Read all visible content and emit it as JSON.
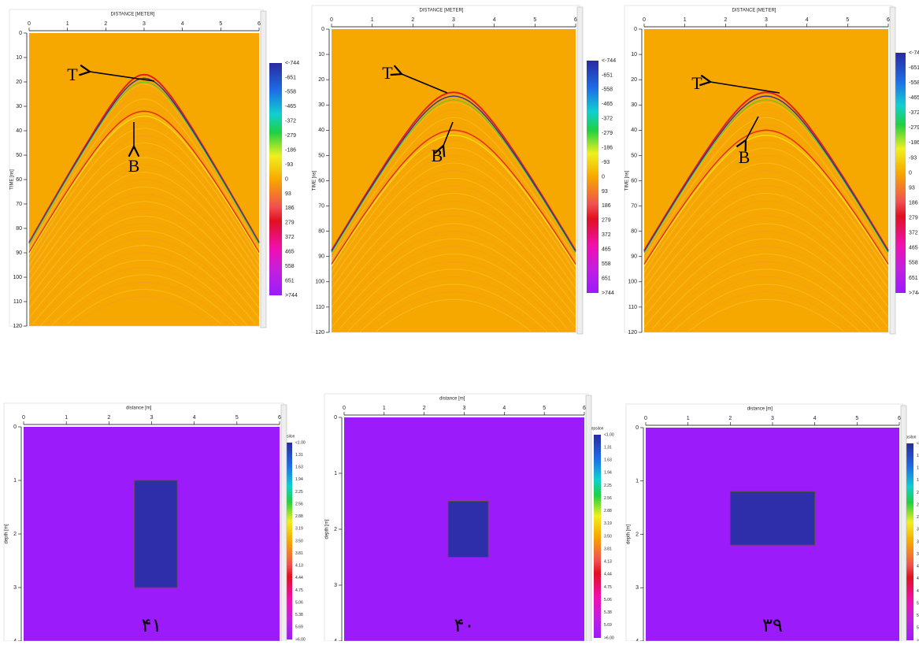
{
  "radargram_axes": {
    "x_title": "DISTANCE [METER]",
    "x_ticks": [
      "0",
      "1",
      "2",
      "3",
      "4",
      "5",
      "6"
    ],
    "y_title": "TIME [ns]",
    "y_ticks": [
      "0",
      "10",
      "20",
      "30",
      "40",
      "50",
      "60",
      "70",
      "80",
      "90",
      "100",
      "110",
      "120"
    ],
    "colorbar_labels": [
      "<-744",
      "-651",
      "-558",
      "-465",
      "-372",
      "-279",
      "-186",
      "-93",
      "0",
      "93",
      "186",
      "279",
      "372",
      "465",
      "558",
      "651",
      ">744"
    ]
  },
  "model_axes": {
    "x_title": "distance [m]",
    "x_ticks": [
      "0",
      "1",
      "2",
      "3",
      "4",
      "5",
      "6"
    ],
    "y_title": "depth [m]",
    "y_ticks": [
      "0",
      "1",
      "2",
      "3",
      "4"
    ],
    "colorbar_title": "epsilon",
    "colorbar_labels": [
      "<1.00",
      "1.31",
      "1.63",
      "1.94",
      "2.25",
      "2.56",
      "2.88",
      "3.19",
      "3.50",
      "3.81",
      "4.13",
      "4.44",
      "4.75",
      "5.06",
      "5.38",
      "5.69",
      ">6.00"
    ]
  },
  "radargrams": [
    {
      "top_label": "T",
      "bottom_label": "B"
    },
    {
      "top_label": "T",
      "bottom_label": "B"
    },
    {
      "top_label": "T",
      "bottom_label": "B"
    }
  ],
  "models": [
    {
      "caption": "۴۱",
      "anomaly_distance": [
        2.6,
        3.6
      ],
      "anomaly_depth": [
        1,
        3
      ]
    },
    {
      "caption": "۴۰",
      "anomaly_distance": [
        2.6,
        3.6
      ],
      "anomaly_depth": [
        1.5,
        2.5
      ]
    },
    {
      "caption": "۳۹",
      "anomaly_distance": [
        2,
        4
      ],
      "anomaly_depth": [
        1.2,
        2.2
      ]
    }
  ]
}
